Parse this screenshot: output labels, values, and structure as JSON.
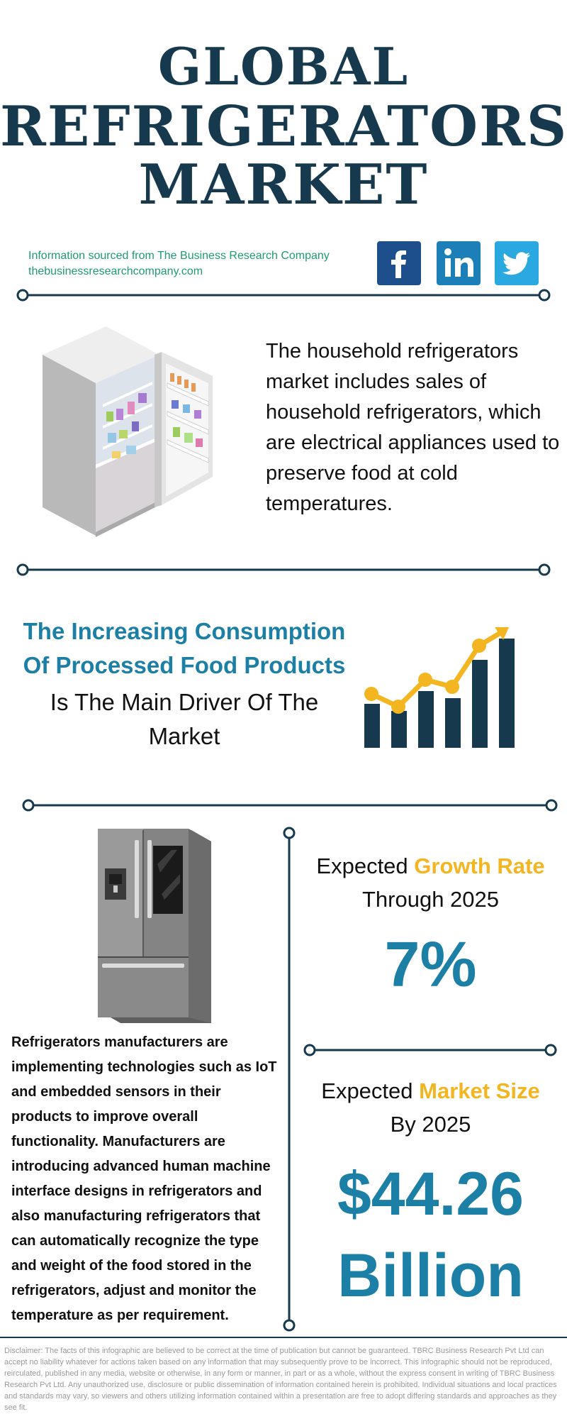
{
  "header": {
    "title_line1": "GLOBAL",
    "title_line2": "REFRIGERATORS",
    "title_line3": "MARKET",
    "source_line1": "Information sourced from The Business Research Company",
    "source_line2": "thebusinessresearchcompany.com",
    "social": [
      {
        "name": "facebook",
        "glyph": "f",
        "color": "#1d4f8c"
      },
      {
        "name": "linkedin",
        "glyph": "in",
        "color": "#1d7fb8"
      },
      {
        "name": "twitter",
        "glyph": "",
        "color": "#2aa9e0"
      }
    ]
  },
  "intro": {
    "text": "The household refrigerators market includes sales of household refrigerators, which are electrical appliances used to preserve food at cold temperatures."
  },
  "driver": {
    "highlight_line1": "The Increasing Consumption",
    "highlight_line2": "Of Processed Food Products",
    "rest_line1": "Is The Main Driver Of The",
    "rest_line2": "Market"
  },
  "stats": {
    "growth_prefix": "Expected ",
    "growth_highlight": "Growth Rate",
    "growth_suffix": "Through 2025",
    "growth_value": "7%",
    "size_prefix": "Expected ",
    "size_highlight": "Market Size",
    "size_suffix": "By 2025",
    "size_value_line1": "$44.26",
    "size_value_line2": "Billion"
  },
  "trends": {
    "text": "Refrigerators manufacturers are implementing technologies such as IoT and embedded sensors in their products to improve overall functionality. Manufacturers are introducing advanced human machine interface designs in refrigerators and also manufacturing refrigerators that can automatically recognize the type and weight of the food stored in the refrigerators, adjust and monitor the temperature as per requirement."
  },
  "footer": {
    "disclaimer": "Disclaimer: The facts of this infographic are believed to be correct at the time of publication but cannot be guaranteed. TBRC Business Research Pvt Ltd can accept no liability whatever for actions taken based on any information that may subsequently prove to be incorrect. This infographic should not be reproduced, reirculated, published in any media, website or otherwise, in any form or manner, in part or as a whole, without the express consent in writing of TBRC Business Research Pvt Ltd. Any unauthorized use, disclosure or public dissemination of information contained herein is prohibited. Individual situations and local practices and standards may vary, so viewers and others utilizing information contained within a presentation are free to adopt differing standards and approaches as they see fit."
  },
  "colors": {
    "navy": "#17394d",
    "accent_blue": "#1c7fa6",
    "accent_yellow": "#f3b520",
    "source_green": "#1e9c6e"
  }
}
